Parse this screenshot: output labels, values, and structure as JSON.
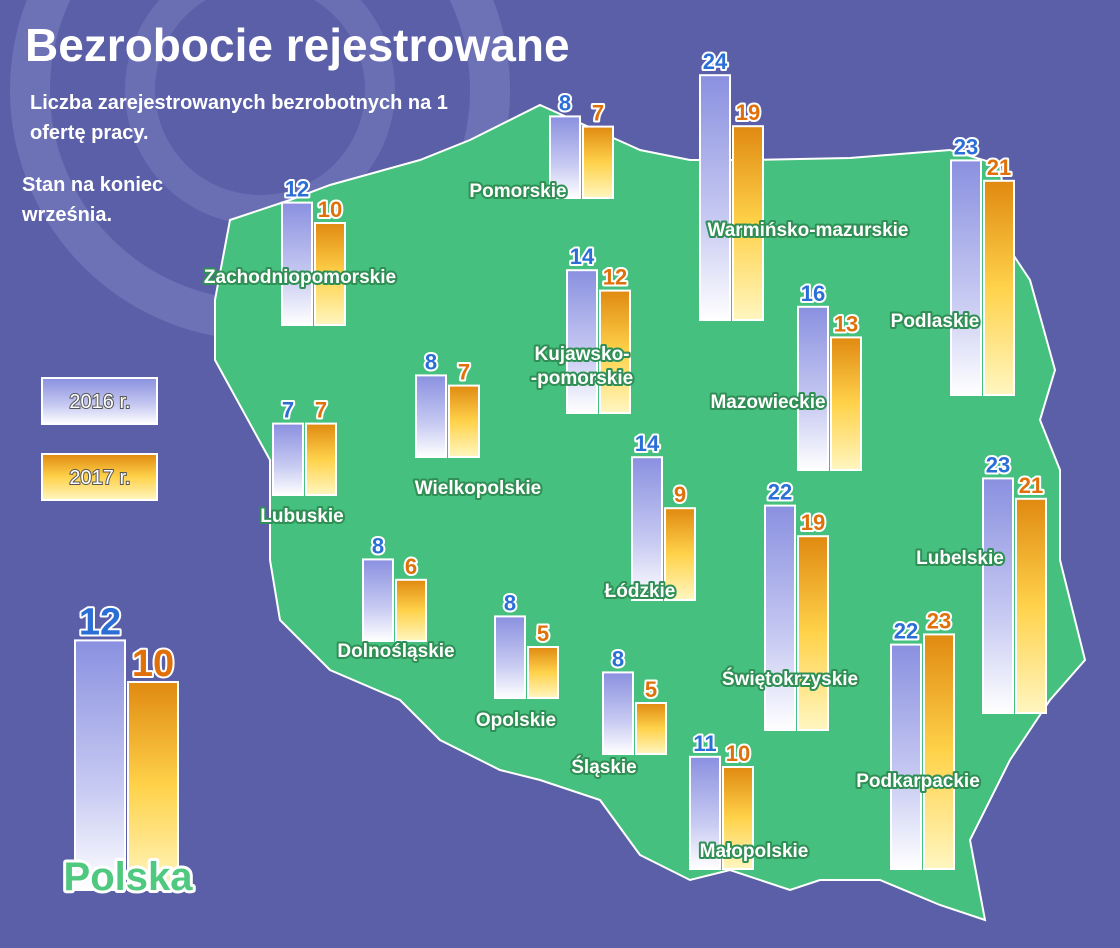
{
  "chart_data": {
    "type": "map-bar",
    "title": "Bezrobocie rejestrowane",
    "subtitle": "Liczba zarejestrowanych bezrobotnych na 1 ofertę pracy.",
    "note": "Stan na koniec września.",
    "categories": [
      "Zachodniopomorskie",
      "Pomorskie",
      "Warmińsko-mazurskie",
      "Podlaskie",
      "Kujawsko-\n-pomorskie",
      "Lubuskie",
      "Wielkopolskie",
      "Mazowieckie",
      "Łódzkie",
      "Lubelskie",
      "Świętokrzyskie",
      "Dolnośląskie",
      "Opolskie",
      "Śląskie",
      "Małopolskie",
      "Podkarpackie"
    ],
    "series": [
      {
        "name": "2016 r.",
        "color": "#8a90e0",
        "values": [
          12,
          8,
          24,
          23,
          14,
          7,
          8,
          16,
          14,
          23,
          22,
          8,
          8,
          8,
          11,
          22
        ]
      },
      {
        "name": "2017 r.",
        "color": "#e8900f",
        "values": [
          10,
          7,
          19,
          21,
          12,
          7,
          7,
          13,
          9,
          21,
          19,
          6,
          5,
          5,
          10,
          23
        ]
      }
    ],
    "total": {
      "name": "Polska",
      "values": [
        12,
        10
      ]
    }
  }
}
